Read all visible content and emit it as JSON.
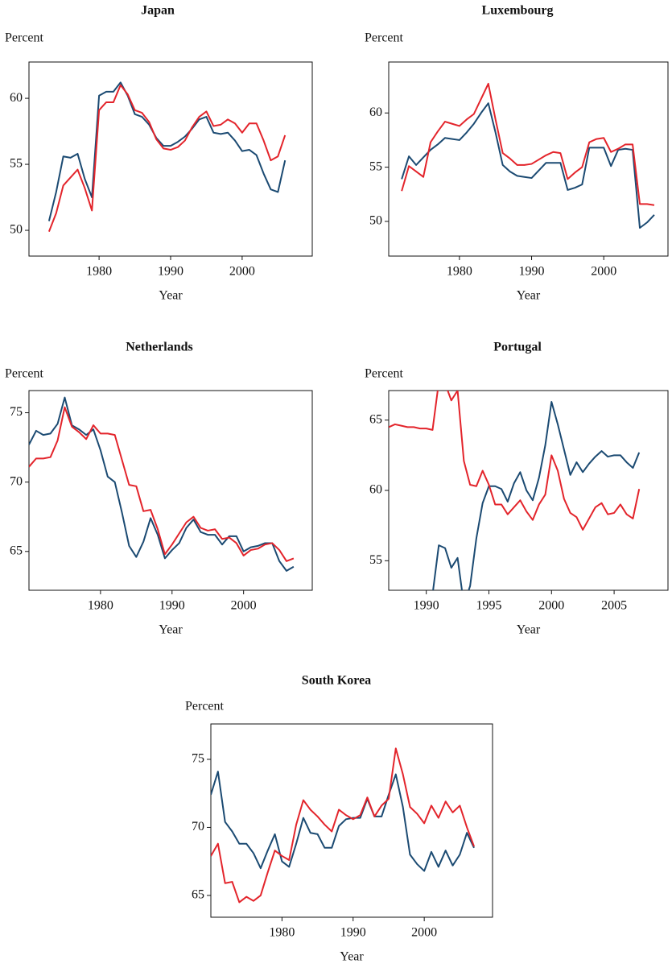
{
  "chart_data": [
    {
      "type": "line",
      "title": "Japan",
      "ylabel": "Percent",
      "xlabel": "Year",
      "xlim": [
        1970.2,
        2009.8
      ],
      "xticks": [
        1980,
        1990,
        2000
      ],
      "ylim": [
        48.05,
        62.75
      ],
      "yticks": [
        50,
        55,
        60
      ],
      "x": [
        1973,
        1974,
        1975,
        1976,
        1977,
        1978,
        1979,
        1980,
        1981,
        1982,
        1983,
        1984,
        1985,
        1986,
        1987,
        1988,
        1989,
        1990,
        1991,
        1992,
        1993,
        1994,
        1995,
        1996,
        1997,
        1998,
        1999,
        2000,
        2001,
        2002,
        2003,
        2004,
        2005,
        2006
      ],
      "series": [
        {
          "color": "#1b4a72",
          "values": [
            50.7,
            52.9,
            55.6,
            55.5,
            55.8,
            53.9,
            52.5,
            60.2,
            60.5,
            60.5,
            61.2,
            60.2,
            58.8,
            58.6,
            58.0,
            57.0,
            56.4,
            56.4,
            56.7,
            57.1,
            57.7,
            58.4,
            58.6,
            57.4,
            57.3,
            57.4,
            56.8,
            56.0,
            56.1,
            55.7,
            54.3,
            53.1,
            52.9,
            55.3
          ]
        },
        {
          "color": "#e3242b",
          "values": [
            49.9,
            51.3,
            53.4,
            54.0,
            54.6,
            53.2,
            51.5,
            59.1,
            59.7,
            59.7,
            61.0,
            60.3,
            59.1,
            58.9,
            58.2,
            56.9,
            56.2,
            56.1,
            56.3,
            56.8,
            57.8,
            58.6,
            59.0,
            57.9,
            58.0,
            58.4,
            58.1,
            57.4,
            58.1,
            58.1,
            56.8,
            55.3,
            55.6,
            57.2
          ]
        }
      ]
    },
    {
      "type": "line",
      "title": "Luxembourg",
      "ylabel": "Percent",
      "xlabel": "Year",
      "xlim": [
        1970.2,
        2008.9
      ],
      "xticks": [
        1980,
        1990,
        2000
      ],
      "ylim": [
        46.8,
        64.7
      ],
      "yticks": [
        50,
        55,
        60
      ],
      "x": [
        1972,
        1973,
        1974,
        1975,
        1976,
        1977,
        1978,
        1979,
        1980,
        1981,
        1982,
        1983,
        1984,
        1985,
        1986,
        1987,
        1988,
        1989,
        1990,
        1991,
        1992,
        1993,
        1994,
        1995,
        1996,
        1997,
        1998,
        1999,
        2000,
        2001,
        2002,
        2003,
        2004,
        2005,
        2006,
        2007
      ],
      "series": [
        {
          "color": "#1b4a72",
          "values": [
            53.9,
            56.0,
            55.2,
            55.9,
            56.6,
            57.1,
            57.7,
            57.6,
            57.5,
            58.2,
            59.0,
            60.0,
            60.9,
            58.2,
            55.2,
            54.6,
            54.2,
            54.1,
            54.0,
            54.7,
            55.4,
            55.4,
            55.4,
            52.9,
            53.1,
            53.4,
            56.8,
            56.8,
            56.8,
            55.1,
            56.6,
            56.7,
            56.6,
            49.4,
            49.9,
            50.6
          ]
        },
        {
          "color": "#e3242b",
          "values": [
            52.8,
            55.1,
            54.6,
            54.1,
            57.3,
            58.3,
            59.2,
            59.0,
            58.8,
            59.4,
            59.9,
            61.3,
            62.7,
            59.4,
            56.3,
            55.8,
            55.2,
            55.2,
            55.3,
            55.7,
            56.1,
            56.4,
            56.3,
            53.9,
            54.5,
            55.0,
            57.3,
            57.6,
            57.7,
            56.4,
            56.7,
            57.1,
            57.1,
            51.6,
            51.6,
            51.5
          ]
        }
      ]
    },
    {
      "type": "line",
      "title": "Netherlands",
      "ylabel": "Percent",
      "xlabel": "Year",
      "xlim": [
        1970,
        2009.6
      ],
      "xticks": [
        1980,
        1990,
        2000
      ],
      "ylim": [
        62.2,
        76.6
      ],
      "yticks": [
        65,
        70,
        75
      ],
      "x": [
        1970,
        1971,
        1972,
        1973,
        1974,
        1975,
        1976,
        1977,
        1978,
        1979,
        1980,
        1981,
        1982,
        1983,
        1984,
        1985,
        1986,
        1987,
        1988,
        1989,
        1990,
        1991,
        1992,
        1993,
        1994,
        1995,
        1996,
        1997,
        1998,
        1999,
        2000,
        2001,
        2002,
        2003,
        2004,
        2005,
        2006,
        2007
      ],
      "series": [
        {
          "color": "#1b4a72",
          "values": [
            72.7,
            73.7,
            73.4,
            73.5,
            74.2,
            76.1,
            74.1,
            73.8,
            73.4,
            73.8,
            72.3,
            70.4,
            70.0,
            67.8,
            65.4,
            64.6,
            65.7,
            67.4,
            66.2,
            64.5,
            65.1,
            65.6,
            66.7,
            67.3,
            66.4,
            66.2,
            66.2,
            65.5,
            66.1,
            66.1,
            65.0,
            65.3,
            65.4,
            65.6,
            65.6,
            64.3,
            63.6,
            63.9
          ]
        },
        {
          "color": "#e3242b",
          "values": [
            71.1,
            71.7,
            71.7,
            71.8,
            73.0,
            75.4,
            74.0,
            73.6,
            73.1,
            74.1,
            73.5,
            73.5,
            73.4,
            71.6,
            69.8,
            69.7,
            67.9,
            68.0,
            66.6,
            64.8,
            65.5,
            66.3,
            67.1,
            67.5,
            66.7,
            66.5,
            66.6,
            65.9,
            66.0,
            65.6,
            64.7,
            65.1,
            65.2,
            65.5,
            65.6,
            65.1,
            64.3,
            64.5
          ]
        }
      ]
    },
    {
      "type": "line",
      "title": "Portugal",
      "ylabel": "Percent",
      "xlabel": "Year",
      "xlim": [
        1987,
        2009.3
      ],
      "xticks": [
        1990,
        1995,
        2000,
        2005
      ],
      "ylim": [
        52.9,
        67.1
      ],
      "yticks": [
        55,
        60,
        65
      ],
      "x": [
        1987,
        1987.5,
        1988,
        1988.5,
        1989,
        1989.5,
        1990,
        1990.5,
        1991,
        1991.5,
        1992,
        1992.5,
        1993,
        1993.5,
        1994,
        1994.5,
        1995,
        1995.5,
        1996,
        1996.5,
        1997,
        1997.5,
        1998,
        1998.5,
        1999,
        1999.5,
        2000,
        2000.5,
        2001,
        2001.5,
        2002,
        2002.5,
        2003,
        2003.5,
        2004,
        2004.5,
        2005,
        2005.5,
        2006,
        2006.5,
        2007
      ],
      "series": [
        {
          "color": "#1b4a72",
          "values": [
            51.5,
            52.6,
            52.65,
            52.7,
            52.7,
            52.7,
            52.7,
            52.6,
            56.1,
            55.9,
            54.5,
            55.2,
            51.9,
            53.2,
            56.6,
            59.1,
            60.3,
            60.3,
            60.1,
            59.2,
            60.5,
            61.3,
            60.0,
            59.3,
            60.9,
            63.2,
            66.3,
            64.7,
            62.9,
            61.1,
            62.0,
            61.3,
            61.9,
            62.4,
            62.8,
            62.4,
            62.5,
            62.5,
            62.0,
            61.6,
            62.7
          ]
        },
        {
          "color": "#e3242b",
          "values": [
            64.5,
            64.7,
            64.6,
            64.5,
            64.5,
            64.4,
            64.4,
            64.3,
            67.7,
            67.6,
            66.4,
            67.1,
            62.1,
            60.4,
            60.3,
            61.4,
            60.4,
            59.0,
            59.0,
            58.3,
            58.8,
            59.3,
            58.5,
            57.9,
            59.0,
            59.7,
            62.5,
            61.4,
            59.4,
            58.4,
            58.1,
            57.2,
            58.0,
            58.8,
            59.1,
            58.3,
            58.4,
            59.0,
            58.3,
            58.0,
            60.1
          ]
        }
      ]
    },
    {
      "type": "line",
      "title": "South Korea",
      "ylabel": "Percent",
      "xlabel": "Year",
      "xlim": [
        1970,
        2009.6
      ],
      "xticks": [
        1980,
        1990,
        2000
      ],
      "ylim": [
        63.4,
        77.6
      ],
      "yticks": [
        65,
        70,
        75
      ],
      "x": [
        1970,
        1971,
        1972,
        1973,
        1974,
        1975,
        1976,
        1977,
        1978,
        1979,
        1980,
        1981,
        1982,
        1983,
        1984,
        1985,
        1986,
        1987,
        1988,
        1989,
        1990,
        1991,
        1992,
        1993,
        1994,
        1995,
        1996,
        1997,
        1998,
        1999,
        2000,
        2001,
        2002,
        2003,
        2004,
        2005,
        2006,
        2007
      ],
      "series": [
        {
          "color": "#1b4a72",
          "values": [
            72.4,
            74.1,
            70.4,
            69.7,
            68.8,
            68.8,
            68.1,
            67.0,
            68.3,
            69.5,
            67.5,
            67.1,
            68.8,
            70.7,
            69.6,
            69.5,
            68.5,
            68.5,
            70.1,
            70.6,
            70.7,
            70.7,
            72.1,
            70.8,
            70.8,
            72.4,
            73.9,
            71.5,
            68.0,
            67.3,
            66.8,
            68.2,
            67.1,
            68.3,
            67.2,
            68.0,
            69.6,
            68.5
          ]
        },
        {
          "color": "#e3242b",
          "values": [
            67.9,
            68.8,
            65.9,
            66.0,
            64.5,
            64.9,
            64.6,
            65.0,
            66.7,
            68.3,
            67.9,
            67.6,
            70.2,
            72.0,
            71.3,
            70.8,
            70.2,
            69.7,
            71.3,
            70.9,
            70.6,
            70.9,
            72.2,
            70.8,
            71.6,
            72.1,
            75.8,
            73.9,
            71.5,
            71.0,
            70.3,
            71.6,
            70.7,
            71.9,
            71.1,
            71.6,
            70.0,
            68.6
          ]
        }
      ]
    }
  ]
}
